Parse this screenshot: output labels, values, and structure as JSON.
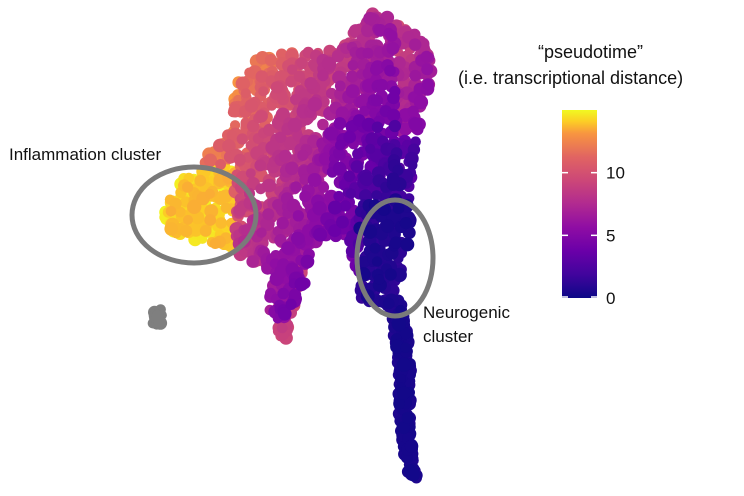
{
  "chart_data": {
    "type": "scatter",
    "title": "",
    "legend": {
      "title_line1": "“pseudotime”",
      "title_line2": "(i.e. transcriptional distance)",
      "ticks": [
        0,
        5,
        10
      ],
      "range": [
        0,
        15
      ],
      "palette": "plasma",
      "placement": "right"
    },
    "annotations": [
      {
        "name": "inflammation",
        "text": "Inflammation cluster"
      },
      {
        "name": "neurogenic",
        "text_line1": "Neurogenic",
        "text_line2": "cluster"
      }
    ],
    "axes": {
      "visible": false,
      "grid": false
    },
    "outlier_color": "#7f7f7f"
  }
}
